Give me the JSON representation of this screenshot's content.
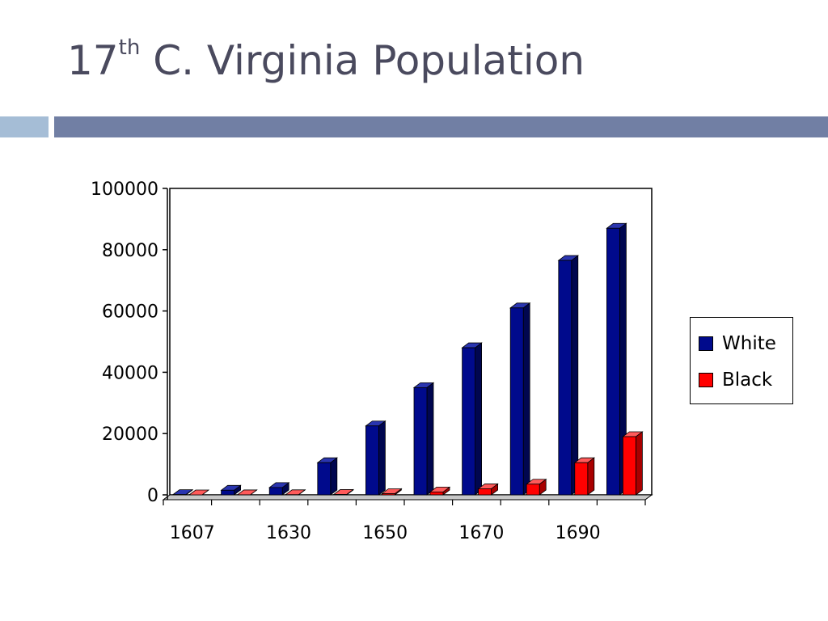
{
  "slide": {
    "title_main": "17",
    "title_sup": "th",
    "title_rest": " C. Virginia Population"
  },
  "colors": {
    "accent_light": "#a5bdd6",
    "accent_dark": "#717fa4",
    "white_series": "#000a8c",
    "black_series": "#ff0000"
  },
  "chart_data": {
    "type": "bar",
    "categories": [
      "1607",
      "",
      "1630",
      "",
      "1650",
      "",
      "1670",
      "",
      "1690",
      ""
    ],
    "series": [
      {
        "name": "White",
        "values": [
          100,
          1500,
          2400,
          10500,
          22500,
          35000,
          48000,
          61000,
          76500,
          87000
        ]
      },
      {
        "name": "Black",
        "values": [
          0,
          20,
          50,
          150,
          400,
          950,
          2000,
          3500,
          10500,
          19000
        ]
      }
    ],
    "title": "",
    "xlabel": "",
    "ylabel": "",
    "ylim": [
      0,
      100000
    ],
    "yticks": [
      "0",
      "20000",
      "40000",
      "60000",
      "80000",
      "100000"
    ],
    "legend_position": "right",
    "grid": false
  }
}
